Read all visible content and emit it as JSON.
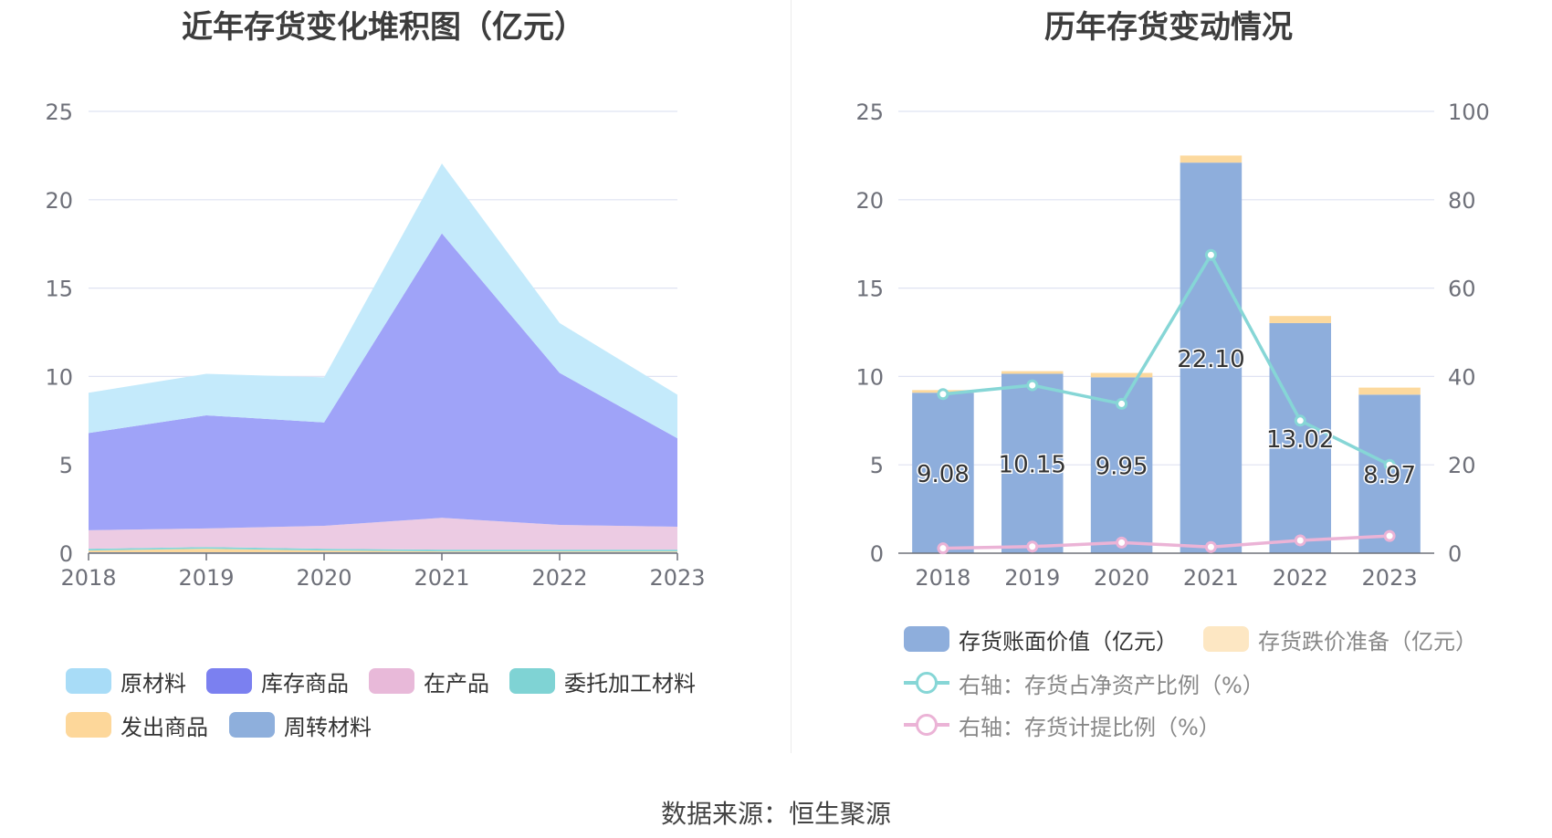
{
  "left_chart": {
    "title": "近年存货变化堆积图（亿元）"
  },
  "right_chart": {
    "title": "历年存货变动情况"
  },
  "source": "数据来源：恒生聚源",
  "chart_data": [
    {
      "type": "area",
      "stacked": true,
      "title": "近年存货变化堆积图（亿元）",
      "x": [
        "2018",
        "2019",
        "2020",
        "2021",
        "2022",
        "2023"
      ],
      "ylim": [
        0,
        25
      ],
      "yticks": [
        "0",
        "5",
        "10",
        "15",
        "20",
        "25"
      ],
      "grid": true,
      "legend_position": "bottom",
      "series": [
        {
          "name": "周转材料",
          "color": "#8eafdc",
          "values": [
            0.05,
            0.05,
            0.05,
            0.05,
            0.05,
            0.05
          ]
        },
        {
          "name": "发出商品",
          "color": "#fcd79b",
          "values": [
            0.1,
            0.2,
            0.1,
            0.05,
            0.05,
            0.05
          ]
        },
        {
          "name": "委托加工材料",
          "color": "#86d6d9",
          "values": [
            0.1,
            0.1,
            0.1,
            0.1,
            0.1,
            0.1
          ]
        },
        {
          "name": "在产品",
          "color": "#eccbe3",
          "values": [
            1.05,
            1.05,
            1.3,
            1.8,
            1.4,
            1.3
          ]
        },
        {
          "name": "库存商品",
          "color": "#9fa3f8",
          "values": [
            5.5,
            6.4,
            5.85,
            16.1,
            8.6,
            5.0
          ]
        },
        {
          "name": "原材料",
          "color": "#c4eafb",
          "values": [
            2.28,
            2.35,
            2.55,
            3.95,
            2.82,
            2.47
          ]
        }
      ],
      "legend": [
        {
          "name": "原材料",
          "color": "#a8dcf7"
        },
        {
          "name": "库存商品",
          "color": "#7b80f0"
        },
        {
          "name": "在产品",
          "color": "#e8b9d9"
        },
        {
          "name": "委托加工材料",
          "color": "#7fd3d4"
        },
        {
          "name": "发出商品",
          "color": "#fdd79a"
        },
        {
          "name": "周转材料",
          "color": "#8eafdc"
        }
      ]
    },
    {
      "type": "bar",
      "stacked": true,
      "title": "历年存货变动情况",
      "x": [
        "2018",
        "2019",
        "2020",
        "2021",
        "2022",
        "2023"
      ],
      "ylim": [
        0,
        25
      ],
      "yticks": [
        "0",
        "5",
        "10",
        "15",
        "20",
        "25"
      ],
      "y2lim": [
        0,
        100
      ],
      "y2ticks": [
        "0",
        "20",
        "40",
        "60",
        "80",
        "100"
      ],
      "grid": true,
      "legend_position": "bottom",
      "series": [
        {
          "name": "存货账面价值（亿元）",
          "type": "bar",
          "color": "#8eaedc",
          "values": [
            9.08,
            10.15,
            9.95,
            22.1,
            13.02,
            8.97
          ],
          "labels": [
            "9.08",
            "10.15",
            "9.95",
            "22.10",
            "13.02",
            "8.97"
          ]
        },
        {
          "name": "存货跌价准备（亿元）",
          "type": "bar",
          "color": "#fcd99e",
          "legend_color": "#fde7c3",
          "values": [
            0.15,
            0.15,
            0.25,
            0.4,
            0.4,
            0.4
          ]
        },
        {
          "name": "右轴：存货占净资产比例（%）",
          "type": "line",
          "axis": "right",
          "color": "#86d6d6",
          "values": [
            36.0,
            38.0,
            33.8,
            67.5,
            30.0,
            20.0
          ]
        },
        {
          "name": "右轴：存货计提比例（%）",
          "type": "line",
          "axis": "right",
          "color": "#ebb3d6",
          "values": [
            1.1,
            1.5,
            2.4,
            1.4,
            2.9,
            3.9
          ]
        }
      ]
    }
  ]
}
